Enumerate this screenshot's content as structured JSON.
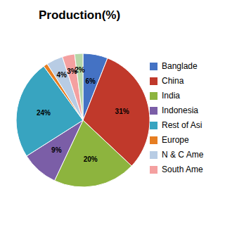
{
  "chart_data": {
    "type": "pie",
    "title": "Production(%)",
    "categories": [
      "Banglade",
      "China",
      "India",
      "Indonesia",
      "Rest of Asi",
      "Europe",
      "N & C Ame",
      "South Ame",
      null
    ],
    "values": [
      6,
      31,
      20,
      9,
      24,
      1,
      4,
      3,
      2
    ],
    "value_labels": [
      "6%",
      "31%",
      "20%",
      "9%",
      "24%",
      null,
      "4%",
      "3%",
      "2%"
    ],
    "colors": [
      "#4472c4",
      "#c0392b",
      "#8db43e",
      "#7b5ea7",
      "#38a4c0",
      "#e67e22",
      "#b8cce4",
      "#f4a0a0",
      "#b6d7a8"
    ],
    "data_labels": true,
    "legend": "right"
  }
}
